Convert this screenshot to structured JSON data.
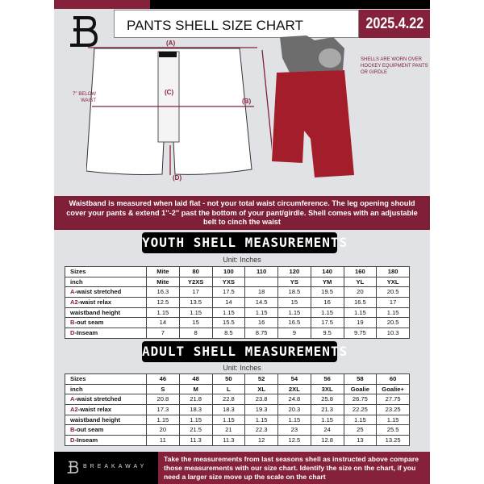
{
  "header": {
    "title": "PANTS SHELL SIZE CHART",
    "date": "2025.4.22"
  },
  "diagram": {
    "label_a": "(A)",
    "label b": "(B)",
    "label_b": "(B)",
    "label_c": "(C)",
    "label_d": "(D)",
    "below_waist": "7'' BELOW WAIST",
    "note": "SHELLS ARE WORN OVER HOCKEY EQUIPMENT PANTS OR GIRDLE"
  },
  "banner": "Waistband is measured when laid flat - not your total waist circumference. The leg opening should cover your pants & extend 1''-2'' past the bottom of your pant/girdle. Shell comes with an adjustable belt to cinch the waist",
  "youth": {
    "title": "YOUTH SHELL MEASUREMENTS",
    "unit": "Unit: Inches",
    "rows": [
      {
        "prefix": "",
        "label": "Sizes",
        "values": [
          "Mite",
          "80",
          "100",
          "110",
          "120",
          "140",
          "160",
          "180"
        ]
      },
      {
        "prefix": "",
        "label": "inch",
        "values": [
          "Mite",
          "Y2XS",
          "YXS",
          "",
          "YS",
          "YM",
          "YL",
          "YXL"
        ]
      },
      {
        "prefix": "A",
        "label": "-waist stretched",
        "values": [
          "16.3",
          "17",
          "17.5",
          "18",
          "18.5",
          "19.5",
          "20",
          "20.5"
        ]
      },
      {
        "prefix": "A2",
        "label": "-waist relax",
        "values": [
          "12.5",
          "13.5",
          "14",
          "14.5",
          "15",
          "16",
          "16.5",
          "17"
        ]
      },
      {
        "prefix": "",
        "label": "waistband height",
        "values": [
          "1.15",
          "1.15",
          "1.15",
          "1.15",
          "1.15",
          "1.15",
          "1.15",
          "1.15"
        ]
      },
      {
        "prefix": "B",
        "label": "-out seam",
        "values": [
          "14",
          "15",
          "15.5",
          "16",
          "16.5",
          "17.5",
          "19",
          "20.5"
        ]
      },
      {
        "prefix": "D",
        "label": "-Inseam",
        "values": [
          "7",
          "8",
          "8.5",
          "8.75",
          "9",
          "9.5",
          "9.75",
          "10.3"
        ]
      }
    ]
  },
  "adult": {
    "title": "ADULT SHELL MEASUREMENTS",
    "unit": "Unit: Inches",
    "rows": [
      {
        "prefix": "",
        "label": "Sizes",
        "values": [
          "46",
          "48",
          "50",
          "52",
          "54",
          "56",
          "58",
          "60"
        ]
      },
      {
        "prefix": "",
        "label": "inch",
        "values": [
          "S",
          "M",
          "L",
          "XL",
          "2XL",
          "3XL",
          "Goalie",
          "Goalie+"
        ]
      },
      {
        "prefix": "A",
        "label": "-waist stretched",
        "values": [
          "20.8",
          "21.8",
          "22.8",
          "23.8",
          "24.8",
          "25.8",
          "26.75",
          "27.75"
        ]
      },
      {
        "prefix": "A2",
        "label": "-waist relax",
        "values": [
          "17.3",
          "18.3",
          "18.3",
          "19.3",
          "20.3",
          "21.3",
          "22.25",
          "23.25"
        ]
      },
      {
        "prefix": "",
        "label": "waistband height",
        "values": [
          "1.15",
          "1.15",
          "1.15",
          "1.15",
          "1.15",
          "1.15",
          "1.15",
          "1.15"
        ]
      },
      {
        "prefix": "B",
        "label": "-out seam",
        "values": [
          "20",
          "21.5",
          "21",
          "22.3",
          "23",
          "24",
          "25",
          "25.5"
        ]
      },
      {
        "prefix": "D",
        "label": "-Inseam",
        "values": [
          "11",
          "11.3",
          "11.3",
          "12",
          "12.5",
          "12.8",
          "13",
          "13.25"
        ]
      }
    ]
  },
  "footer": {
    "brand": "BREAKAWAY",
    "text": "Take the measurements from last seasons shell as instructed above compare those measurements  with our size chart. Identify the size on the chart, if you need a larger size move up the scale on the chart"
  },
  "colors": {
    "brand": "#85213a",
    "background": "#e1e2e6"
  }
}
